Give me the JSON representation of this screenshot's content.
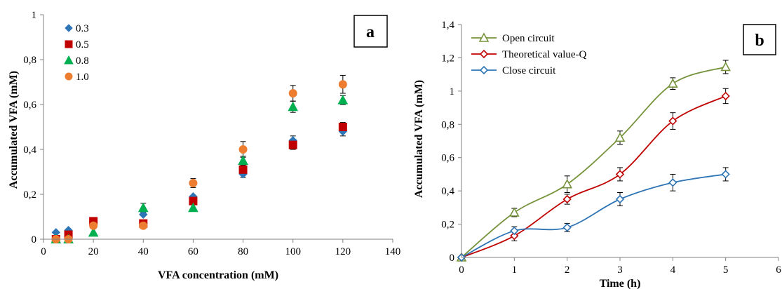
{
  "chart_data": [
    {
      "panel": "a",
      "type": "scatter",
      "panel_label": "a",
      "xlabel": "VFA concentration (mM)",
      "ylabel": "Accumulated VFA (mM)",
      "xlim": [
        0,
        140
      ],
      "ylim": [
        0,
        1
      ],
      "x_ticks": [
        "0",
        "20",
        "40",
        "60",
        "80",
        "100",
        "120",
        "140"
      ],
      "y_ticks": [
        "0",
        "0,2",
        "0,4",
        "0,6",
        "0,8",
        "1"
      ],
      "legend_position": "top-left",
      "grid": false,
      "x": [
        5,
        10,
        20,
        40,
        60,
        80,
        100,
        120
      ],
      "series": [
        {
          "name": "0.3",
          "marker": "diamond",
          "color": "#2e75b6",
          "values": [
            0.03,
            0.04,
            0.08,
            0.11,
            0.19,
            0.29,
            0.44,
            0.48
          ],
          "errors": [
            0.0,
            0.0,
            0.0,
            0.0,
            0.0,
            0.015,
            0.02,
            0.02
          ]
        },
        {
          "name": "0.5",
          "marker": "square",
          "color": "#c00000",
          "values": [
            0.0,
            0.02,
            0.08,
            0.07,
            0.17,
            0.31,
            0.42,
            0.5
          ],
          "errors": [
            0.0,
            0.0,
            0.0,
            0.0,
            0.0,
            0.015,
            0.02,
            0.02
          ]
        },
        {
          "name": "0.8",
          "marker": "triangle",
          "color": "#00b050",
          "values": [
            0.0,
            0.0,
            0.03,
            0.14,
            0.14,
            0.35,
            0.59,
            0.62
          ],
          "errors": [
            0.0,
            0.0,
            0.0,
            0.02,
            0.0,
            0.02,
            0.025,
            0.02
          ]
        },
        {
          "name": "1.0",
          "marker": "circle",
          "color": "#ed7d31",
          "values": [
            0.0,
            0.0,
            0.06,
            0.06,
            0.25,
            0.4,
            0.65,
            0.69
          ],
          "errors": [
            0.0,
            0.0,
            0.0,
            0.0,
            0.02,
            0.035,
            0.035,
            0.04
          ]
        }
      ]
    },
    {
      "panel": "b",
      "type": "line",
      "panel_label": "b",
      "xlabel": "Time (h)",
      "ylabel": "Accumulated VFA (mM)",
      "xlim": [
        0,
        6
      ],
      "ylim": [
        0,
        1.4
      ],
      "x_ticks": [
        "0",
        "1",
        "2",
        "3",
        "4",
        "5",
        "6"
      ],
      "y_ticks": [
        "0",
        "0,2",
        "0,4",
        "0,6",
        "0,8",
        "1",
        "1,2",
        "1,4"
      ],
      "legend_position": "top-left",
      "grid": false,
      "x": [
        0,
        1,
        2,
        3,
        4,
        5
      ],
      "series": [
        {
          "name": "Open circuit",
          "marker": "triangle",
          "color": "#76933c",
          "values": [
            0,
            0.27,
            0.44,
            0.72,
            1.045,
            1.145
          ],
          "errors": [
            0,
            0.025,
            0.05,
            0.04,
            0.035,
            0.04
          ]
        },
        {
          "name": "Theoretical value-Q",
          "marker": "diamond",
          "color": "#c00000",
          "values": [
            0,
            0.13,
            0.35,
            0.5,
            0.82,
            0.97
          ],
          "errors": [
            0,
            0.03,
            0.03,
            0.04,
            0.05,
            0.045
          ]
        },
        {
          "name": "Close circuit",
          "marker": "diamond",
          "color": "#2e75b6",
          "values": [
            0,
            0.16,
            0.18,
            0.35,
            0.45,
            0.5
          ],
          "errors": [
            0,
            0.025,
            0.025,
            0.04,
            0.05,
            0.04
          ]
        }
      ]
    }
  ]
}
